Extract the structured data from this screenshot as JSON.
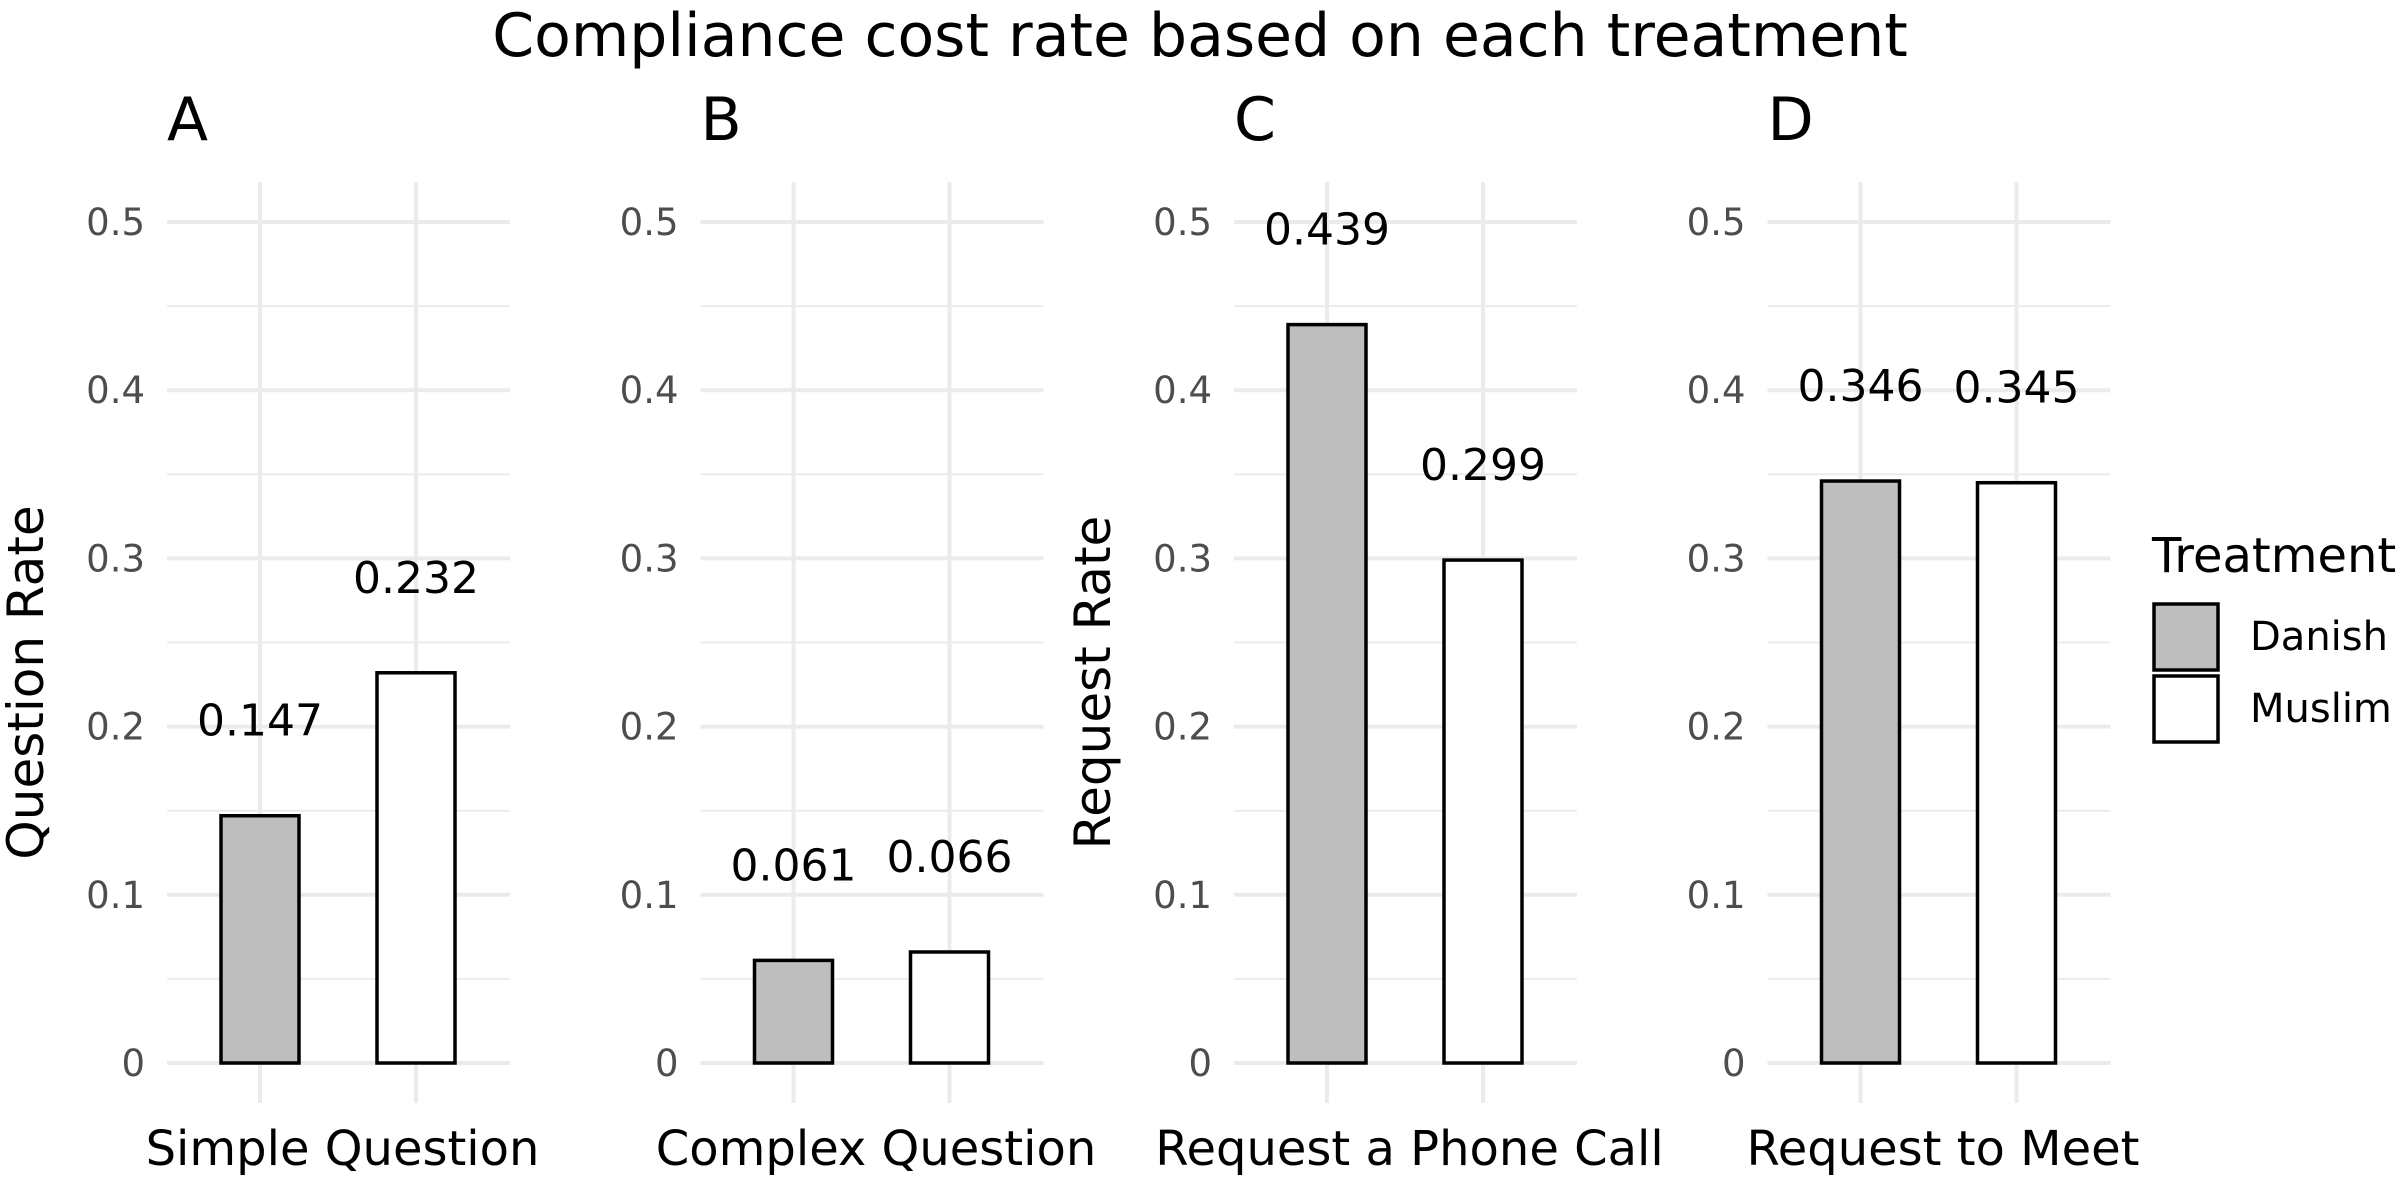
{
  "chart_data": {
    "type": "bar",
    "title": "Compliance cost rate based on each treatment",
    "ylim": [
      0,
      0.5
    ],
    "yticks": [
      "0",
      "0.1",
      "0.2",
      "0.3",
      "0.4",
      "0.5"
    ],
    "grid": true,
    "legend": {
      "title": "Treatment",
      "placement": "right",
      "entries": [
        {
          "name": "Danish",
          "color": "#bebebe"
        },
        {
          "name": "Muslim",
          "color": "#ffffff"
        }
      ]
    },
    "panels": [
      {
        "tag": "A",
        "category": "Simple Question",
        "ylabel": "Question Rate",
        "bars": [
          {
            "series": "Danish",
            "value": 0.147,
            "label": "0.147"
          },
          {
            "series": "Muslim",
            "value": 0.232,
            "label": "0.232"
          }
        ]
      },
      {
        "tag": "B",
        "category": "Complex Question",
        "ylabel": "",
        "bars": [
          {
            "series": "Danish",
            "value": 0.061,
            "label": "0.061"
          },
          {
            "series": "Muslim",
            "value": 0.066,
            "label": "0.066"
          }
        ]
      },
      {
        "tag": "C",
        "category": "Request a Phone Call",
        "ylabel": "Request Rate",
        "bars": [
          {
            "series": "Danish",
            "value": 0.439,
            "label": "0.439"
          },
          {
            "series": "Muslim",
            "value": 0.299,
            "label": "0.299"
          }
        ]
      },
      {
        "tag": "D",
        "category": "Request to Meet",
        "ylabel": "",
        "bars": [
          {
            "series": "Danish",
            "value": 0.346,
            "label": "0.346"
          },
          {
            "series": "Muslim",
            "value": 0.345,
            "label": "0.345"
          }
        ]
      }
    ]
  }
}
